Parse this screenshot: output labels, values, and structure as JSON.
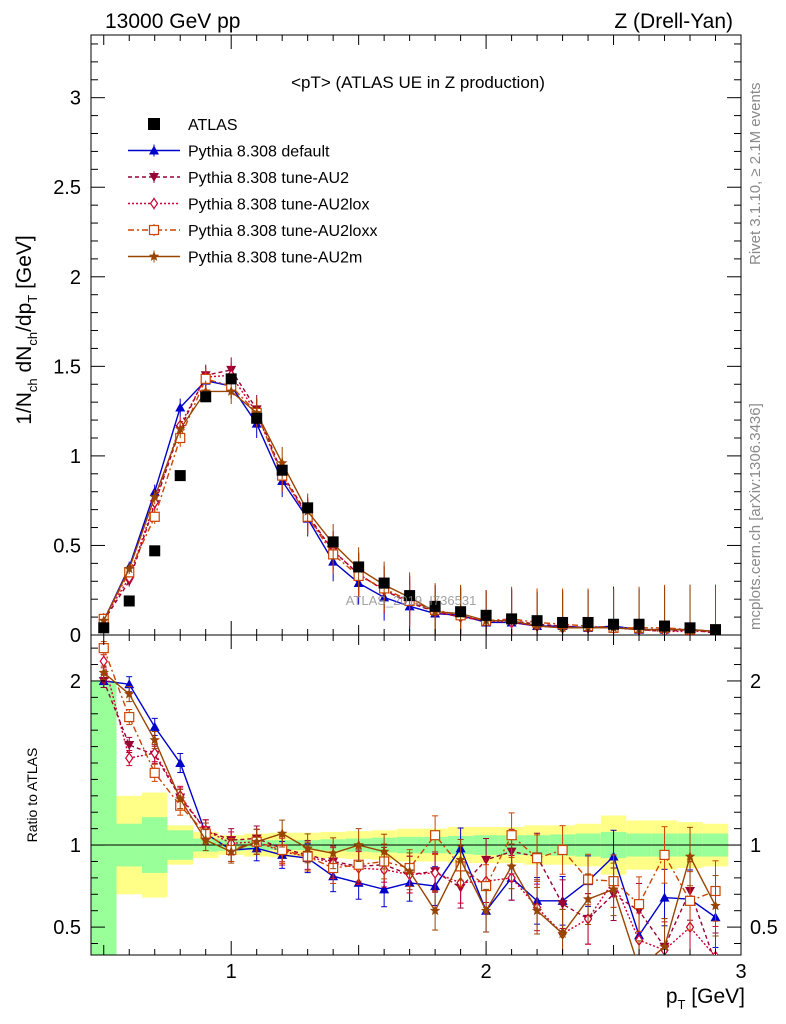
{
  "header": {
    "left": "13000 GeV pp",
    "right": "Z (Drell-Yan)"
  },
  "side": {
    "rivet": "Rivet 3.1.10, ≥ 2.1M events",
    "mcplots": "mcplots.cern.ch [arXiv:1306.3436]"
  },
  "watermark": "ATLAS_2019_I736531",
  "chart_data": {
    "type": "scatter",
    "title": "<pT> (ATLAS UE in Z production)",
    "xlabel": "p_T [GeV]",
    "ylabel": "1/N_ch dN_ch/dp_T [GeV]",
    "ratio_ylabel": "Ratio to ATLAS",
    "xlim": [
      0.45,
      3.0
    ],
    "ylim": [
      0,
      3.35
    ],
    "ratio_ylim": [
      0.33,
      2.28
    ],
    "x_ticks": [
      "1",
      "2",
      "3"
    ],
    "y_ticks": [
      "0",
      "0.5",
      "1",
      "1.5",
      "2",
      "2.5",
      "3"
    ],
    "ratio_ticks": [
      "0.5",
      "1",
      "2"
    ],
    "x": [
      0.5,
      0.6,
      0.7,
      0.8,
      0.9,
      1.0,
      1.1,
      1.2,
      1.3,
      1.4,
      1.5,
      1.6,
      1.7,
      1.8,
      1.9,
      2.0,
      2.1,
      2.2,
      2.3,
      2.4,
      2.5,
      2.6,
      2.7,
      2.8,
      2.9
    ],
    "data": {
      "name": "ATLAS",
      "values": [
        0.04,
        0.19,
        0.47,
        0.89,
        1.33,
        1.43,
        1.21,
        0.92,
        0.71,
        0.52,
        0.38,
        0.29,
        0.22,
        0.16,
        0.13,
        0.11,
        0.09,
        0.08,
        0.07,
        0.07,
        0.06,
        0.06,
        0.05,
        0.04,
        0.03
      ]
    },
    "series": [
      {
        "name": "Pythia 8.308 default",
        "color": "#0000cc",
        "marker": "triangle-up",
        "dash": "",
        "values": [
          0.08,
          0.38,
          0.8,
          1.27,
          1.42,
          1.39,
          1.18,
          0.86,
          0.65,
          0.41,
          0.29,
          0.21,
          0.16,
          0.12,
          0.11,
          0.07,
          0.07,
          0.05,
          0.05,
          0.04,
          0.05,
          0.03,
          0.03,
          0.03,
          0.02
        ],
        "ratio": [
          2.0,
          1.98,
          1.72,
          1.5,
          1.07,
          0.97,
          0.98,
          0.94,
          0.92,
          0.81,
          0.77,
          0.73,
          0.77,
          0.75,
          0.98,
          0.6,
          0.8,
          0.66,
          0.66,
          0.78,
          0.93,
          0.45,
          0.68,
          0.67,
          0.56
        ]
      },
      {
        "name": "Pythia 8.308 tune-AU2",
        "color": "#990033",
        "marker": "triangle-down",
        "dash": "4,3",
        "values": [
          0.08,
          0.3,
          0.73,
          1.15,
          1.45,
          1.48,
          1.26,
          0.9,
          0.67,
          0.47,
          0.34,
          0.25,
          0.18,
          0.13,
          0.1,
          0.08,
          0.08,
          0.06,
          0.05,
          0.04,
          0.04,
          0.03,
          0.02,
          0.03,
          0.01
        ],
        "ratio": [
          2.0,
          1.61,
          1.55,
          1.29,
          1.09,
          1.03,
          1.04,
          0.98,
          0.94,
          0.9,
          0.87,
          0.88,
          0.82,
          0.84,
          0.74,
          0.91,
          0.96,
          0.93,
          0.64,
          0.55,
          0.7,
          0.6,
          0.38,
          0.72,
          0.28
        ]
      },
      {
        "name": "Pythia 8.308 tune-AU2lox",
        "color": "#cc0033",
        "marker": "diamond-open",
        "dash": "2,2",
        "values": [
          0.09,
          0.32,
          0.74,
          1.17,
          1.44,
          1.45,
          1.24,
          0.89,
          0.66,
          0.47,
          0.34,
          0.25,
          0.19,
          0.13,
          0.1,
          0.08,
          0.07,
          0.05,
          0.04,
          0.04,
          0.04,
          0.03,
          0.02,
          0.02,
          0.02
        ],
        "ratio": [
          2.12,
          1.53,
          1.56,
          1.3,
          1.09,
          1.01,
          1.02,
          0.96,
          0.93,
          0.89,
          0.86,
          0.85,
          0.82,
          0.83,
          0.77,
          0.78,
          0.8,
          0.62,
          0.46,
          0.55,
          0.78,
          0.42,
          0.36,
          0.5,
          0.32
        ]
      },
      {
        "name": "Pythia 8.308 tune-AU2loxx",
        "color": "#cc4400",
        "marker": "square-open",
        "dash": "6,3,2,3",
        "values": [
          0.09,
          0.35,
          0.66,
          1.1,
          1.43,
          1.39,
          1.24,
          0.89,
          0.66,
          0.45,
          0.33,
          0.26,
          0.19,
          0.14,
          0.11,
          0.08,
          0.09,
          0.07,
          0.06,
          0.05,
          0.04,
          0.04,
          0.04,
          0.03,
          0.02
        ],
        "ratio": [
          2.2,
          1.78,
          1.44,
          1.24,
          1.07,
          0.97,
          1.02,
          0.97,
          0.93,
          0.86,
          0.88,
          0.9,
          0.86,
          1.06,
          0.87,
          0.75,
          1.06,
          0.92,
          0.97,
          0.79,
          0.78,
          0.64,
          0.94,
          0.66,
          0.72
        ]
      },
      {
        "name": "Pythia 8.308 tune-AU2m",
        "color": "#994400",
        "marker": "star",
        "dash": "",
        "values": [
          0.08,
          0.37,
          0.77,
          1.15,
          1.36,
          1.36,
          1.24,
          0.96,
          0.69,
          0.51,
          0.37,
          0.28,
          0.21,
          0.13,
          0.12,
          0.08,
          0.08,
          0.05,
          0.04,
          0.04,
          0.04,
          0.03,
          0.03,
          0.03,
          0.02
        ],
        "ratio": [
          2.05,
          1.92,
          1.64,
          1.28,
          1.03,
          0.96,
          1.02,
          1.07,
          0.98,
          0.95,
          1.0,
          0.96,
          0.84,
          0.6,
          0.91,
          0.6,
          0.87,
          0.6,
          0.46,
          0.67,
          0.73,
          0.25,
          0.38,
          0.93,
          0.63
        ]
      }
    ],
    "band_inner": [
      1.0,
      0.13,
      0.17,
      0.09,
      0.04,
      0.035,
      0.03,
      0.03,
      0.03,
      0.035,
      0.04,
      0.045,
      0.05,
      0.05,
      0.055,
      0.06,
      0.06,
      0.06,
      0.065,
      0.07,
      0.08,
      0.07,
      0.07,
      0.07,
      0.07
    ],
    "band_outer": [
      1.0,
      0.3,
      0.32,
      0.12,
      0.08,
      0.06,
      0.07,
      0.075,
      0.075,
      0.08,
      0.085,
      0.09,
      0.1,
      0.1,
      0.11,
      0.11,
      0.11,
      0.12,
      0.12,
      0.13,
      0.18,
      0.15,
      0.15,
      0.14,
      0.13
    ]
  }
}
